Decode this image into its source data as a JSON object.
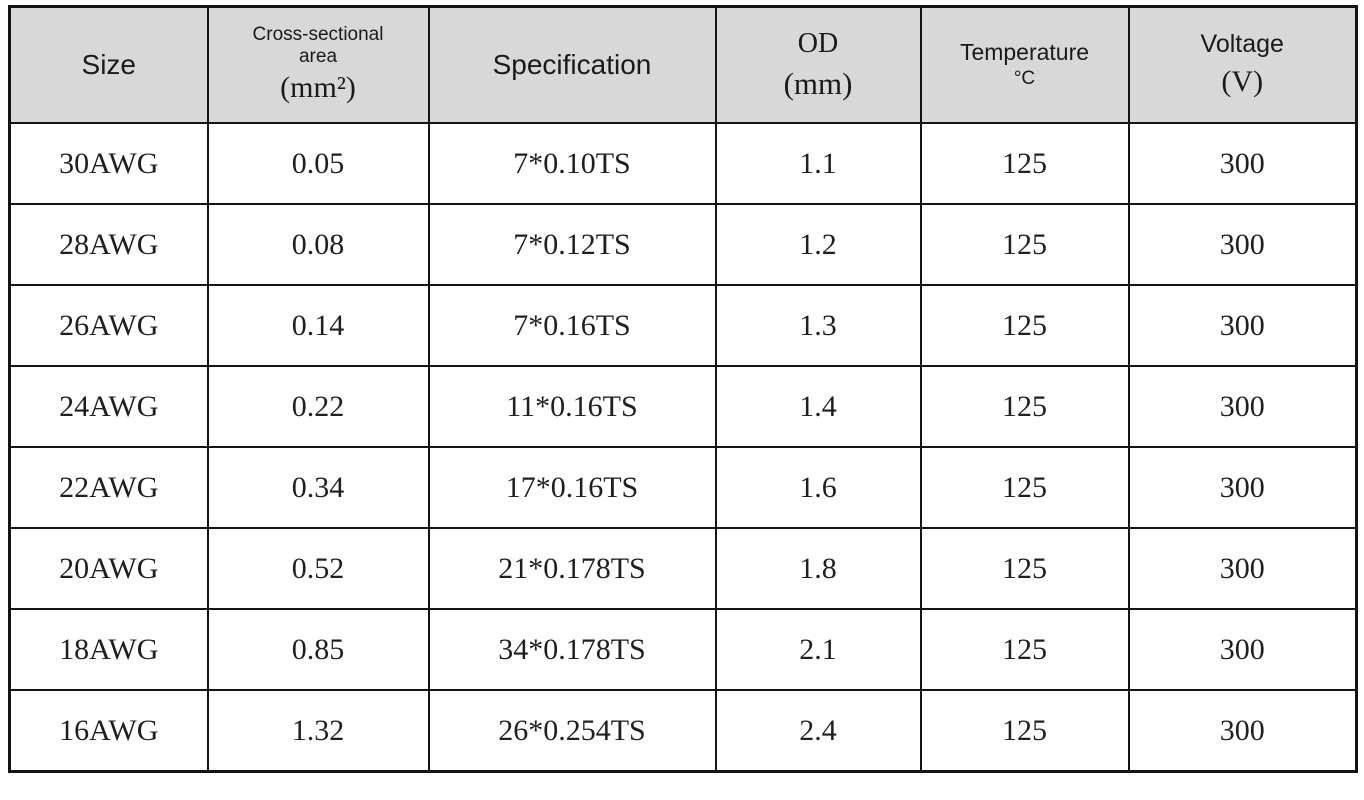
{
  "chart_data": {
    "type": "table",
    "title": "",
    "headers": [
      {
        "label": "Size",
        "unit": ""
      },
      {
        "label": "Cross-sectional area",
        "unit": "(mm²)"
      },
      {
        "label": "Specification",
        "unit": ""
      },
      {
        "label": "OD",
        "unit": "(mm)"
      },
      {
        "label": "Temperature",
        "unit": "°C"
      },
      {
        "label": "Voltage",
        "unit": "(V)"
      }
    ],
    "rows": [
      [
        "30AWG",
        "0.05",
        "7*0.10TS",
        "1.1",
        "125",
        "300"
      ],
      [
        "28AWG",
        "0.08",
        "7*0.12TS",
        "1.2",
        "125",
        "300"
      ],
      [
        "26AWG",
        "0.14",
        "7*0.16TS",
        "1.3",
        "125",
        "300"
      ],
      [
        "24AWG",
        "0.22",
        "11*0.16TS",
        "1.4",
        "125",
        "300"
      ],
      [
        "22AWG",
        "0.34",
        "17*0.16TS",
        "1.6",
        "125",
        "300"
      ],
      [
        "20AWG",
        "0.52",
        "21*0.178TS",
        "1.8",
        "125",
        "300"
      ],
      [
        "18AWG",
        "0.85",
        "34*0.178TS",
        "2.1",
        "125",
        "300"
      ],
      [
        "16AWG",
        "1.32",
        "26*0.254TS",
        "2.4",
        "125",
        "300"
      ]
    ],
    "colors": {
      "header_background": "#d8d8d8",
      "border": "#141414",
      "cell_background": "#ffffff",
      "text": "#1f1f1f"
    }
  }
}
